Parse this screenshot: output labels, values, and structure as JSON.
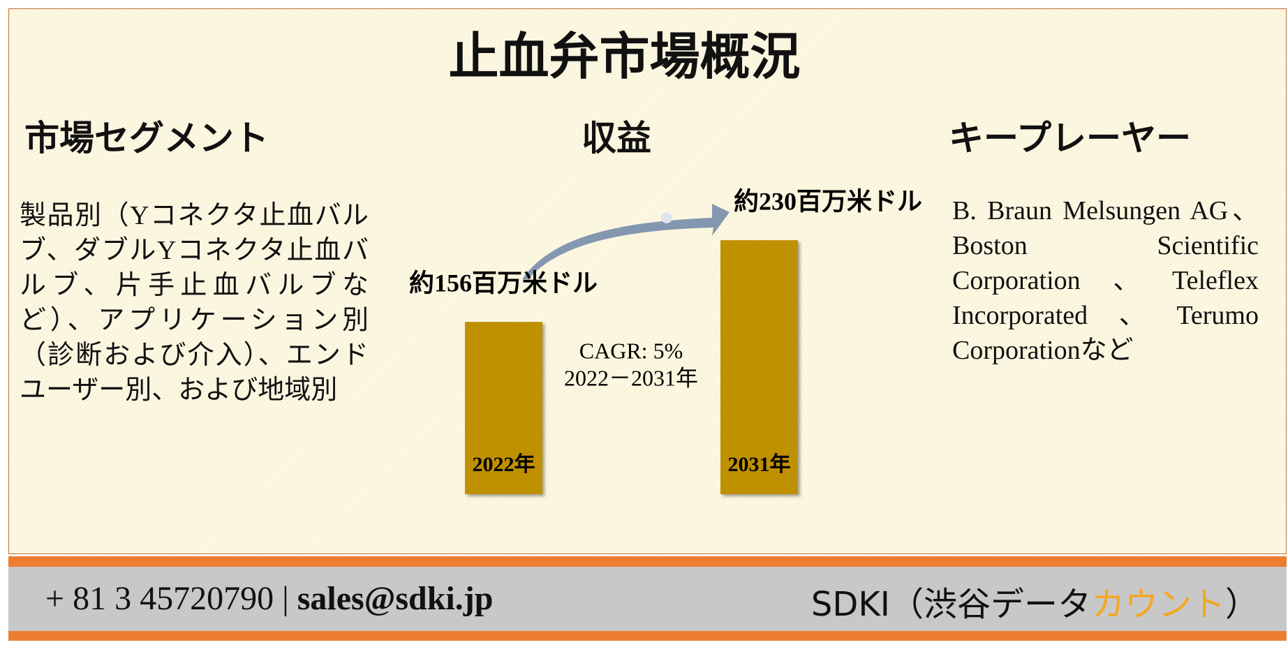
{
  "title": "止血弁市場概況",
  "segment": {
    "heading": "市場セグメント",
    "text": "製品別（Yコネクタ止血バルブ、ダブルYコネクタ止血バルブ、片手止血バルブなど）、アプリケーション別（診断および介入）、エンドユーザー別、および地域別"
  },
  "chart_data": {
    "type": "bar",
    "title": "収益",
    "categories": [
      "2022年",
      "2031年"
    ],
    "values": [
      156,
      230
    ],
    "value_labels": [
      "約156百万米ドル",
      "約230百万米ドル"
    ],
    "color": "#bf9000",
    "annotations": [
      "CAGR: 5%",
      "2022－2031年"
    ]
  },
  "players": {
    "heading": "キープレーヤー",
    "text": "B. Braun Melsungen AG、Boston Scientific Corporation、Teleflex Incorporated、Terumo Corporationなど"
  },
  "footer": {
    "phone": "+ 81 3 45720790",
    "separator": "|",
    "email": "sales@sdki.jp",
    "company": [
      "SDKI（渋谷データ",
      "カウント",
      "）"
    ]
  }
}
